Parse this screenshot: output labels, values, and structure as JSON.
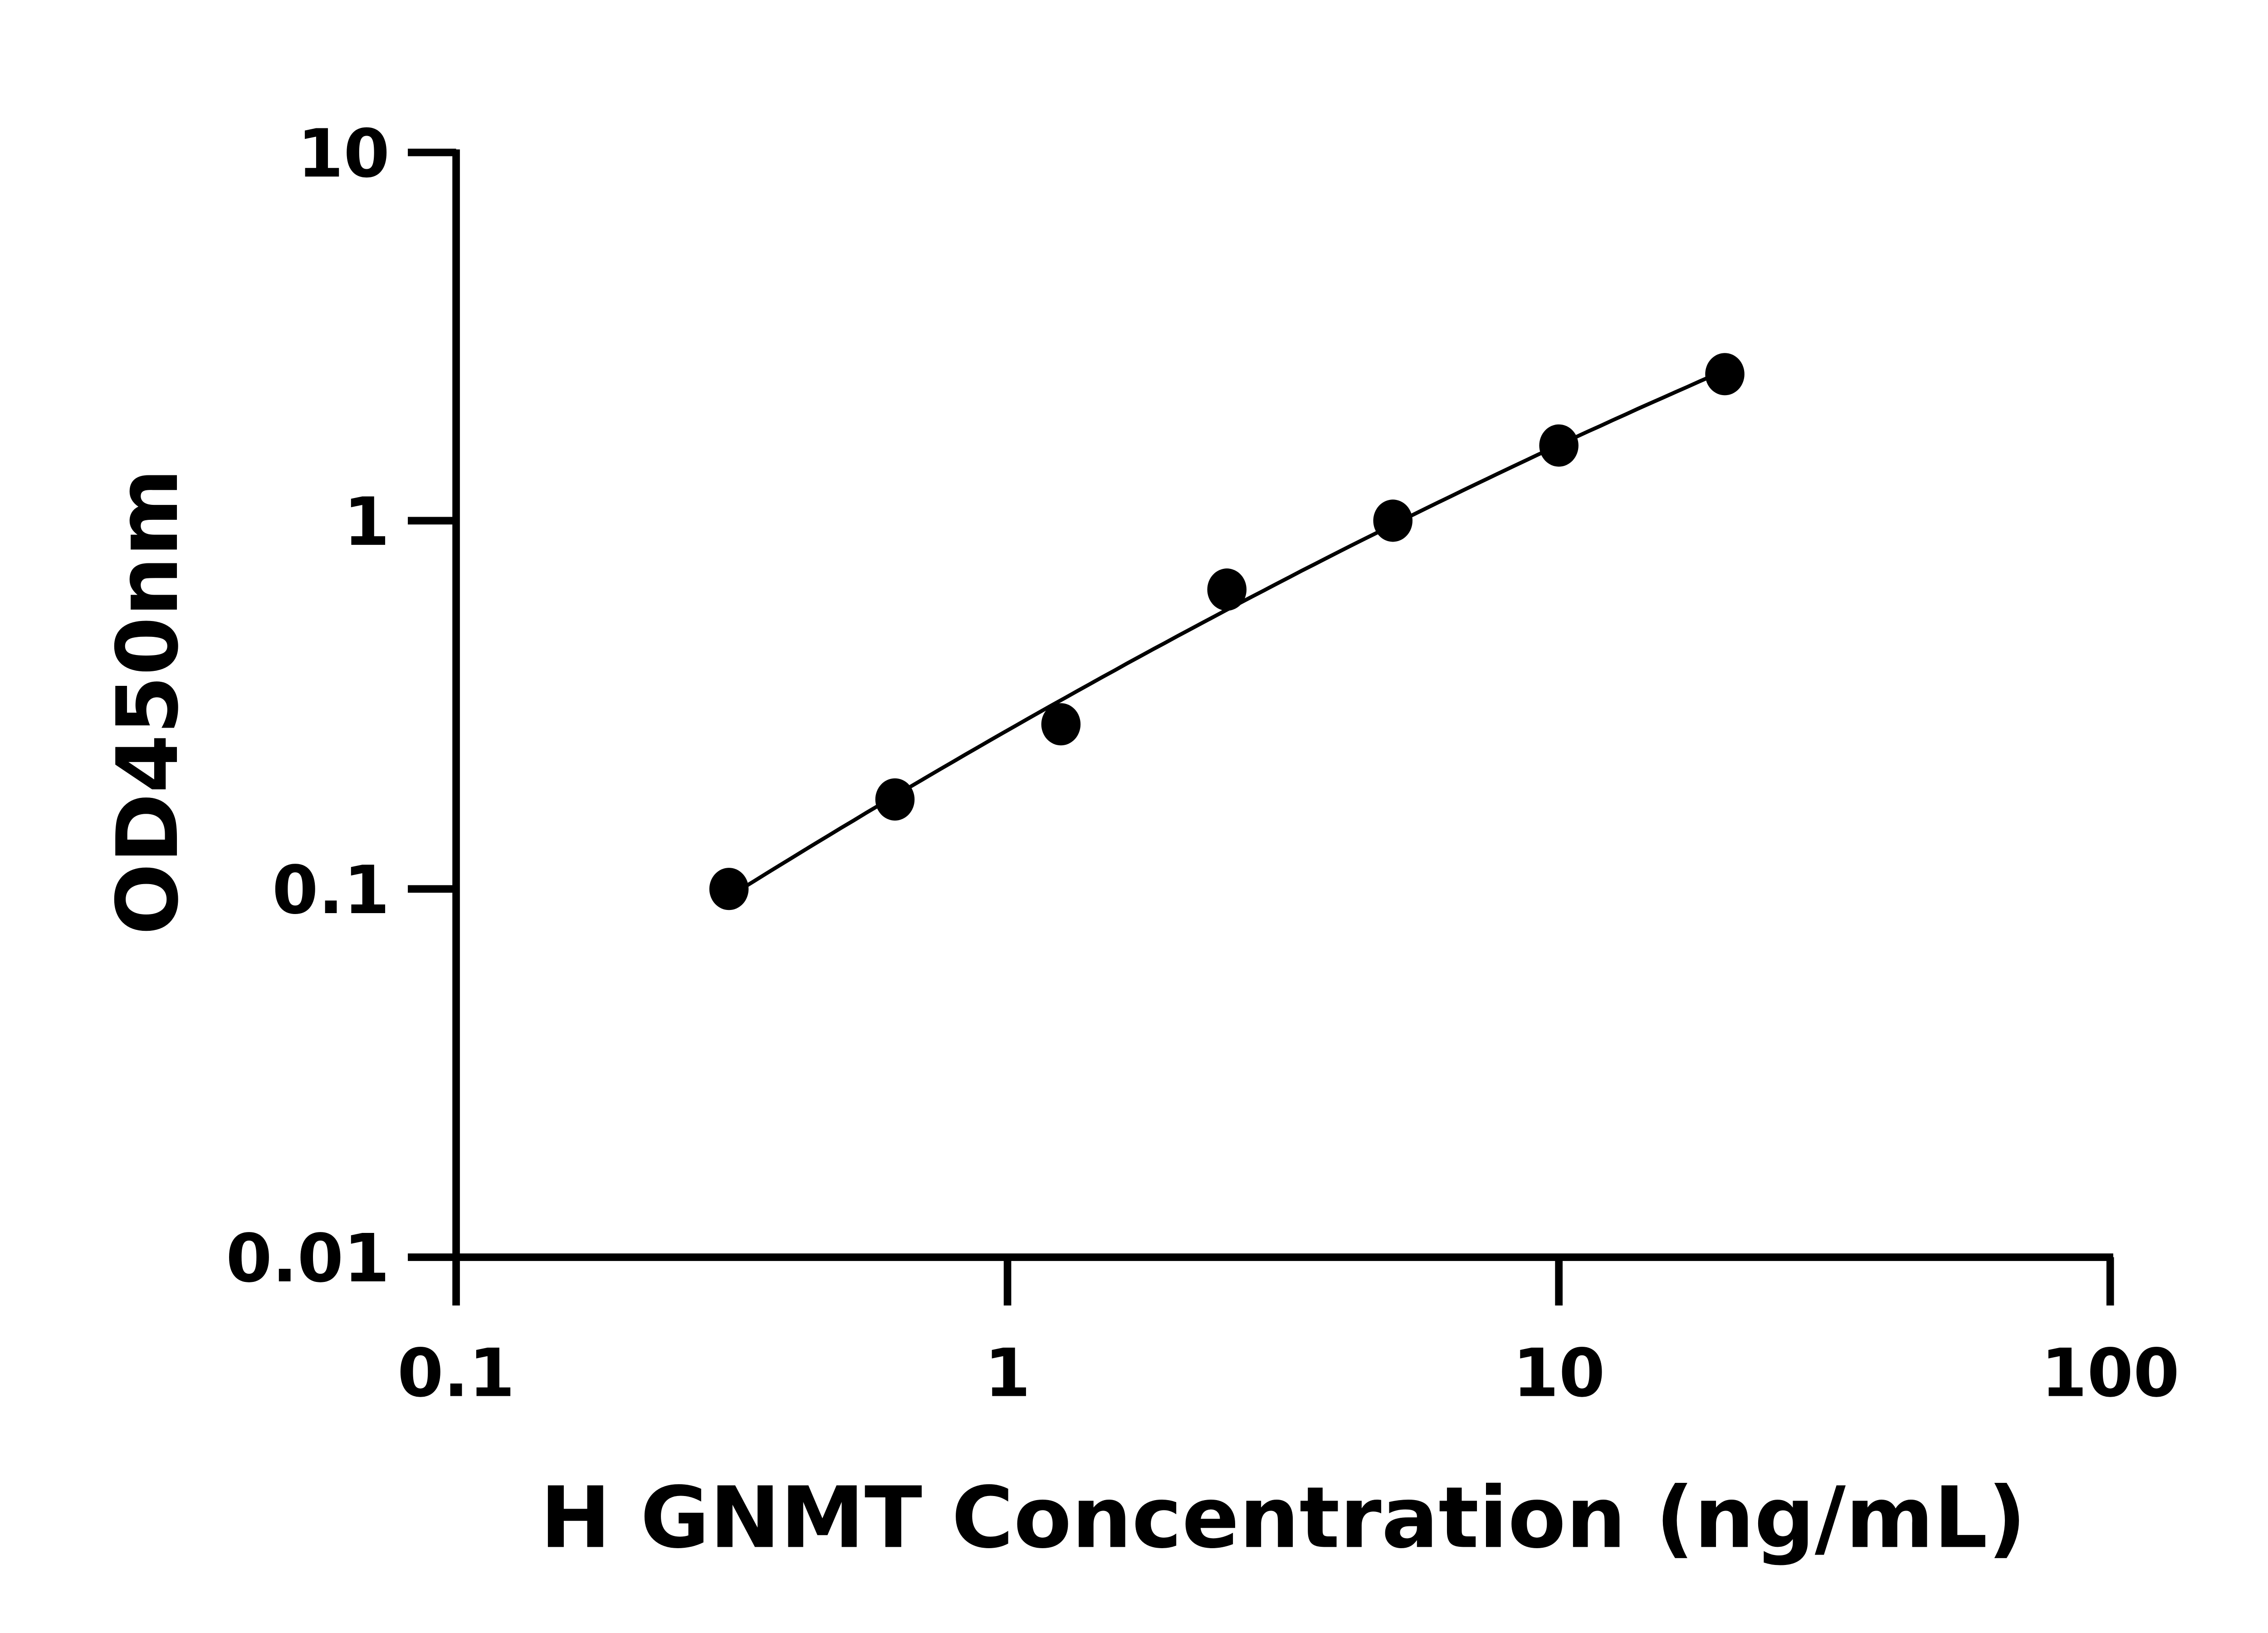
{
  "chart_data": {
    "type": "scatter",
    "title": "",
    "xlabel": "H GNMT Concentration (ng/mL)",
    "ylabel": "OD450nm",
    "x_scale": "log",
    "y_scale": "log",
    "xlim": [
      0.1,
      100
    ],
    "ylim": [
      0.01,
      10
    ],
    "x_ticks": [
      "0.1",
      "1",
      "10",
      "100"
    ],
    "y_ticks": [
      "0.01",
      "0.1",
      "1",
      "10"
    ],
    "grid": false,
    "legend": "none",
    "fit_line": "standard curve",
    "series": [
      {
        "x": [
          0.3125,
          0.625,
          1.25,
          2.5,
          5,
          10,
          20
        ],
        "y": [
          0.1,
          0.175,
          0.28,
          0.65,
          1.0,
          1.6,
          2.5
        ]
      }
    ],
    "color": "#000000"
  }
}
